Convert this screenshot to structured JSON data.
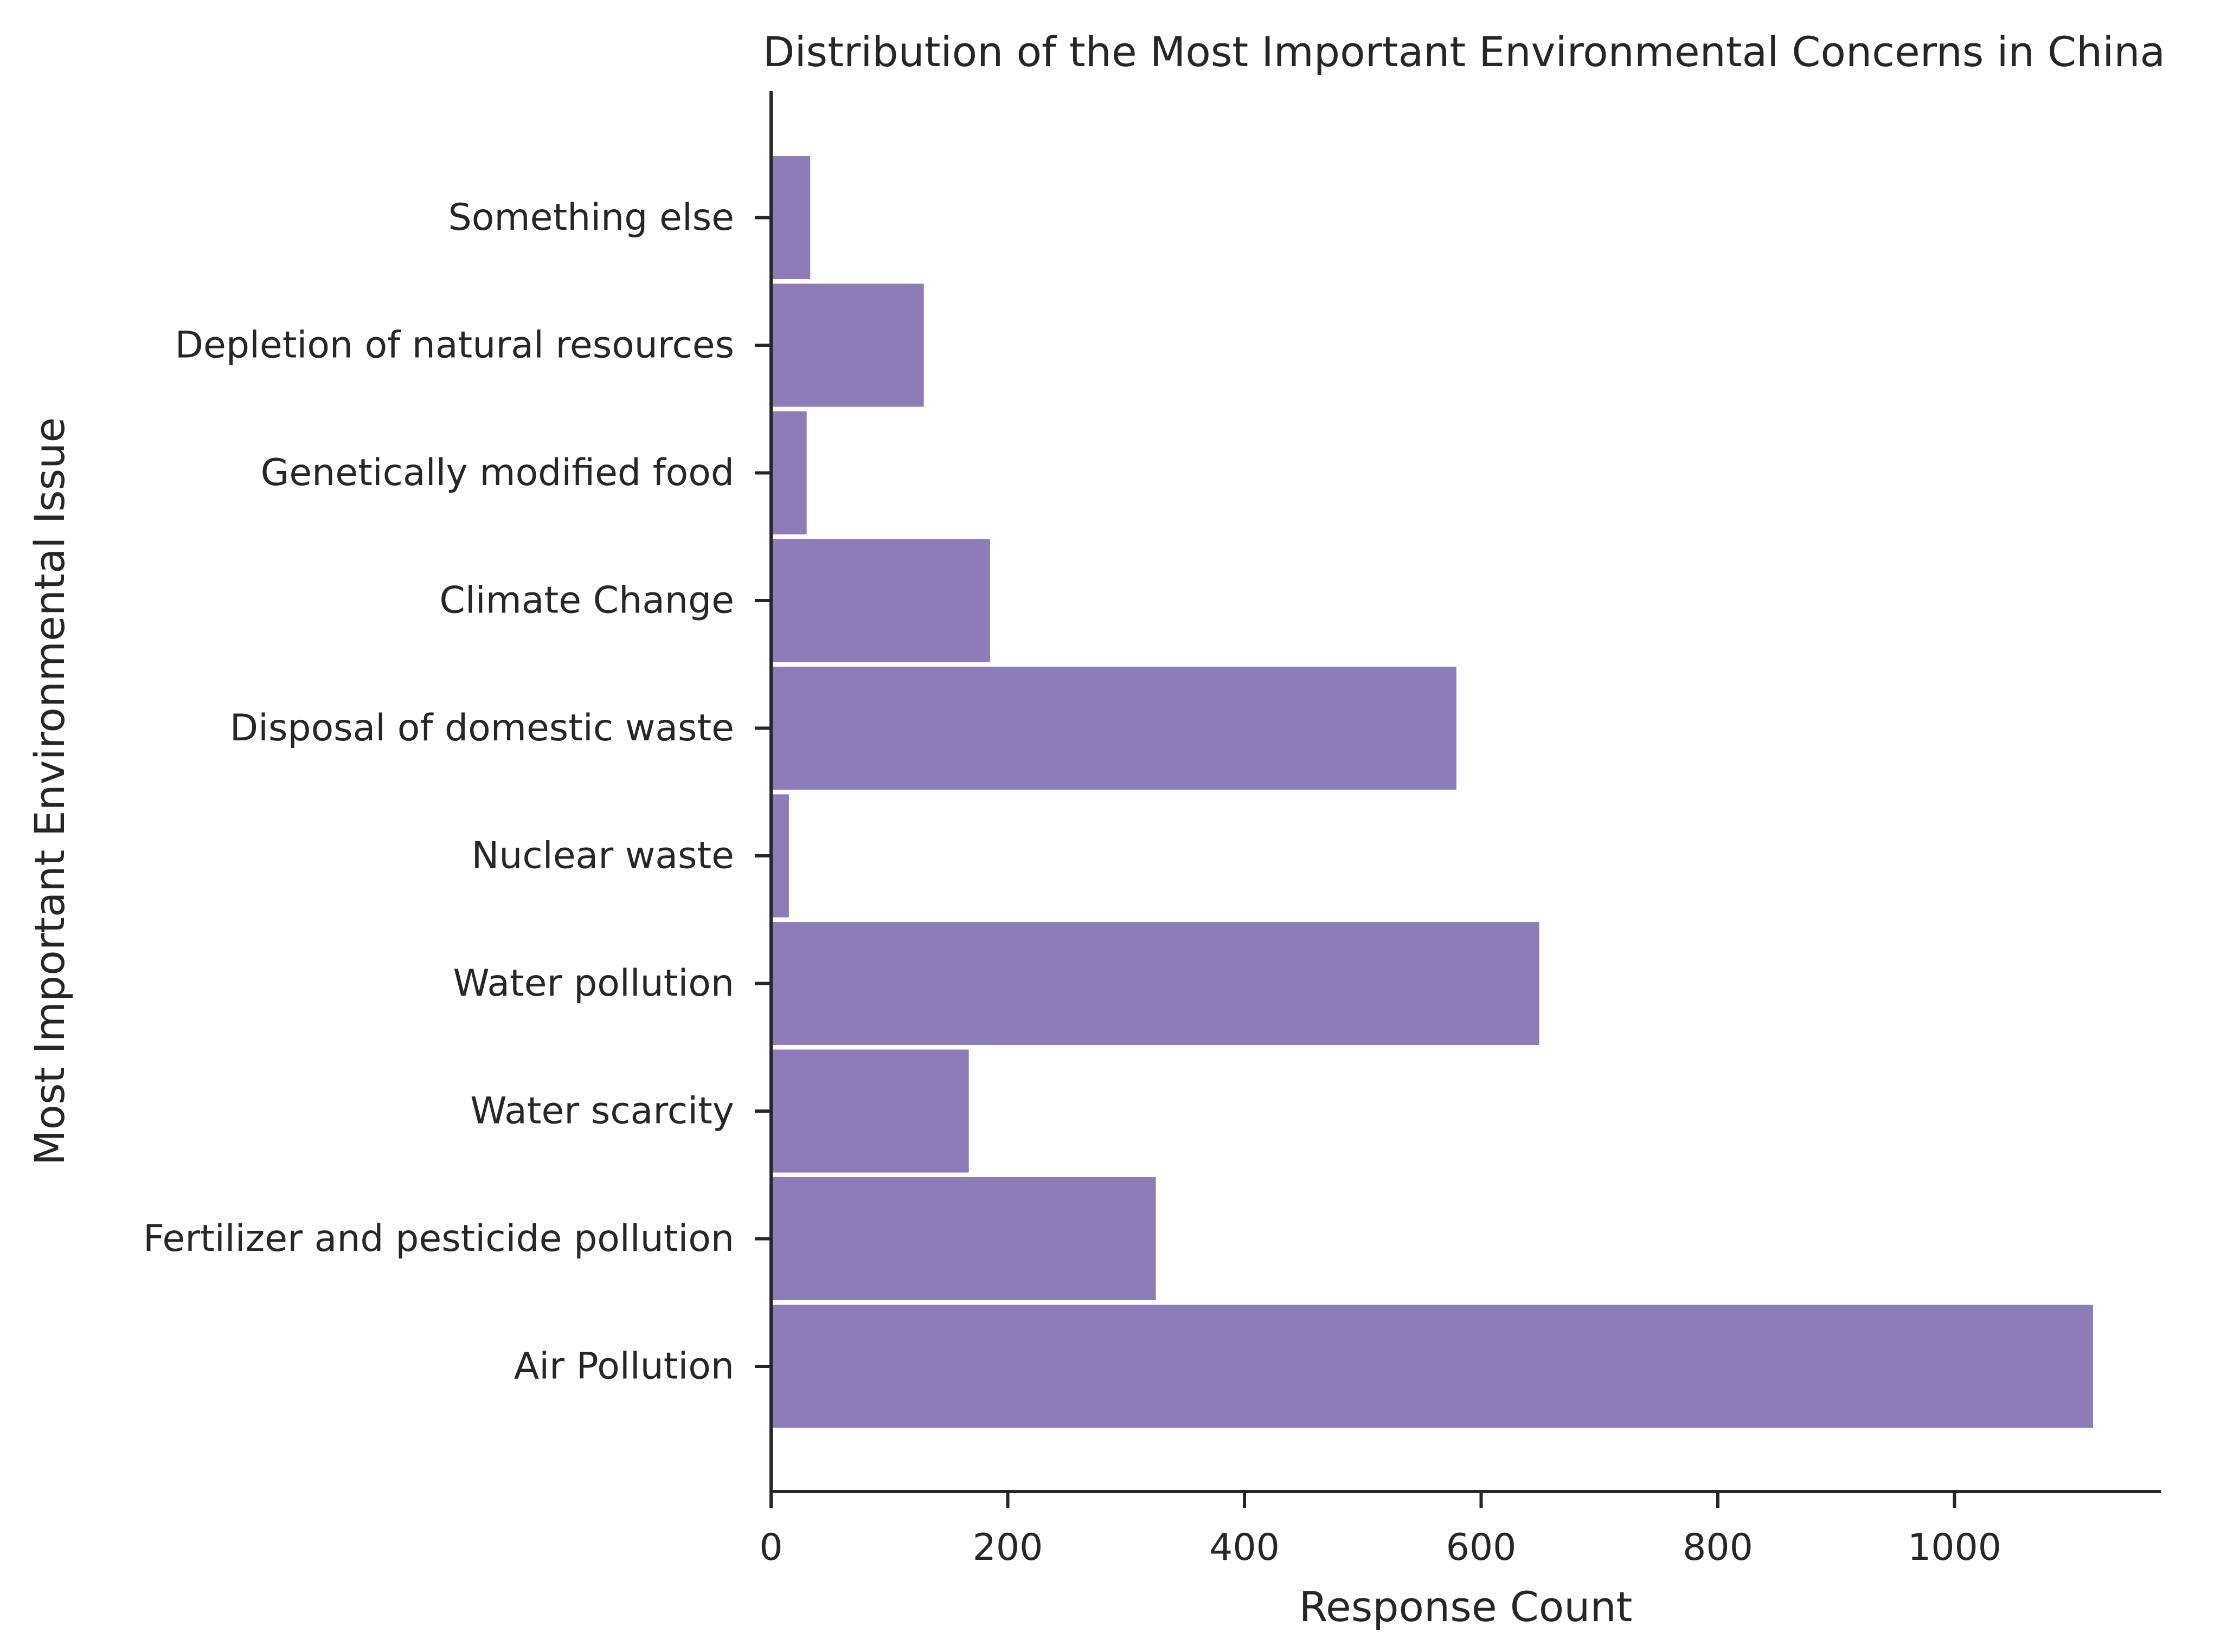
{
  "chart_data": {
    "type": "bar",
    "orientation": "horizontal",
    "title": "Distribution of the Most Important Environmental Concerns in China",
    "xlabel": "Response Count",
    "ylabel": "Most Important Environmental Issue",
    "categories": [
      "Air Pollution",
      "Fertilizer and pesticide pollution",
      "Water scarcity",
      "Water pollution",
      "Nuclear waste",
      "Disposal of domestic waste",
      "Climate Change",
      "Genetically modified food",
      "Depletion of natural resources",
      "Something else"
    ],
    "values": [
      1118,
      326,
      168,
      650,
      16,
      580,
      186,
      31,
      130,
      34
    ],
    "xlim": [
      0,
      1175
    ],
    "xticks": [
      0,
      200,
      400,
      600,
      800,
      1000
    ],
    "xtick_labels": [
      "0",
      "200",
      "400",
      "600",
      "800",
      "1000"
    ],
    "grid": false,
    "bar_color": "#8e7cb9"
  }
}
